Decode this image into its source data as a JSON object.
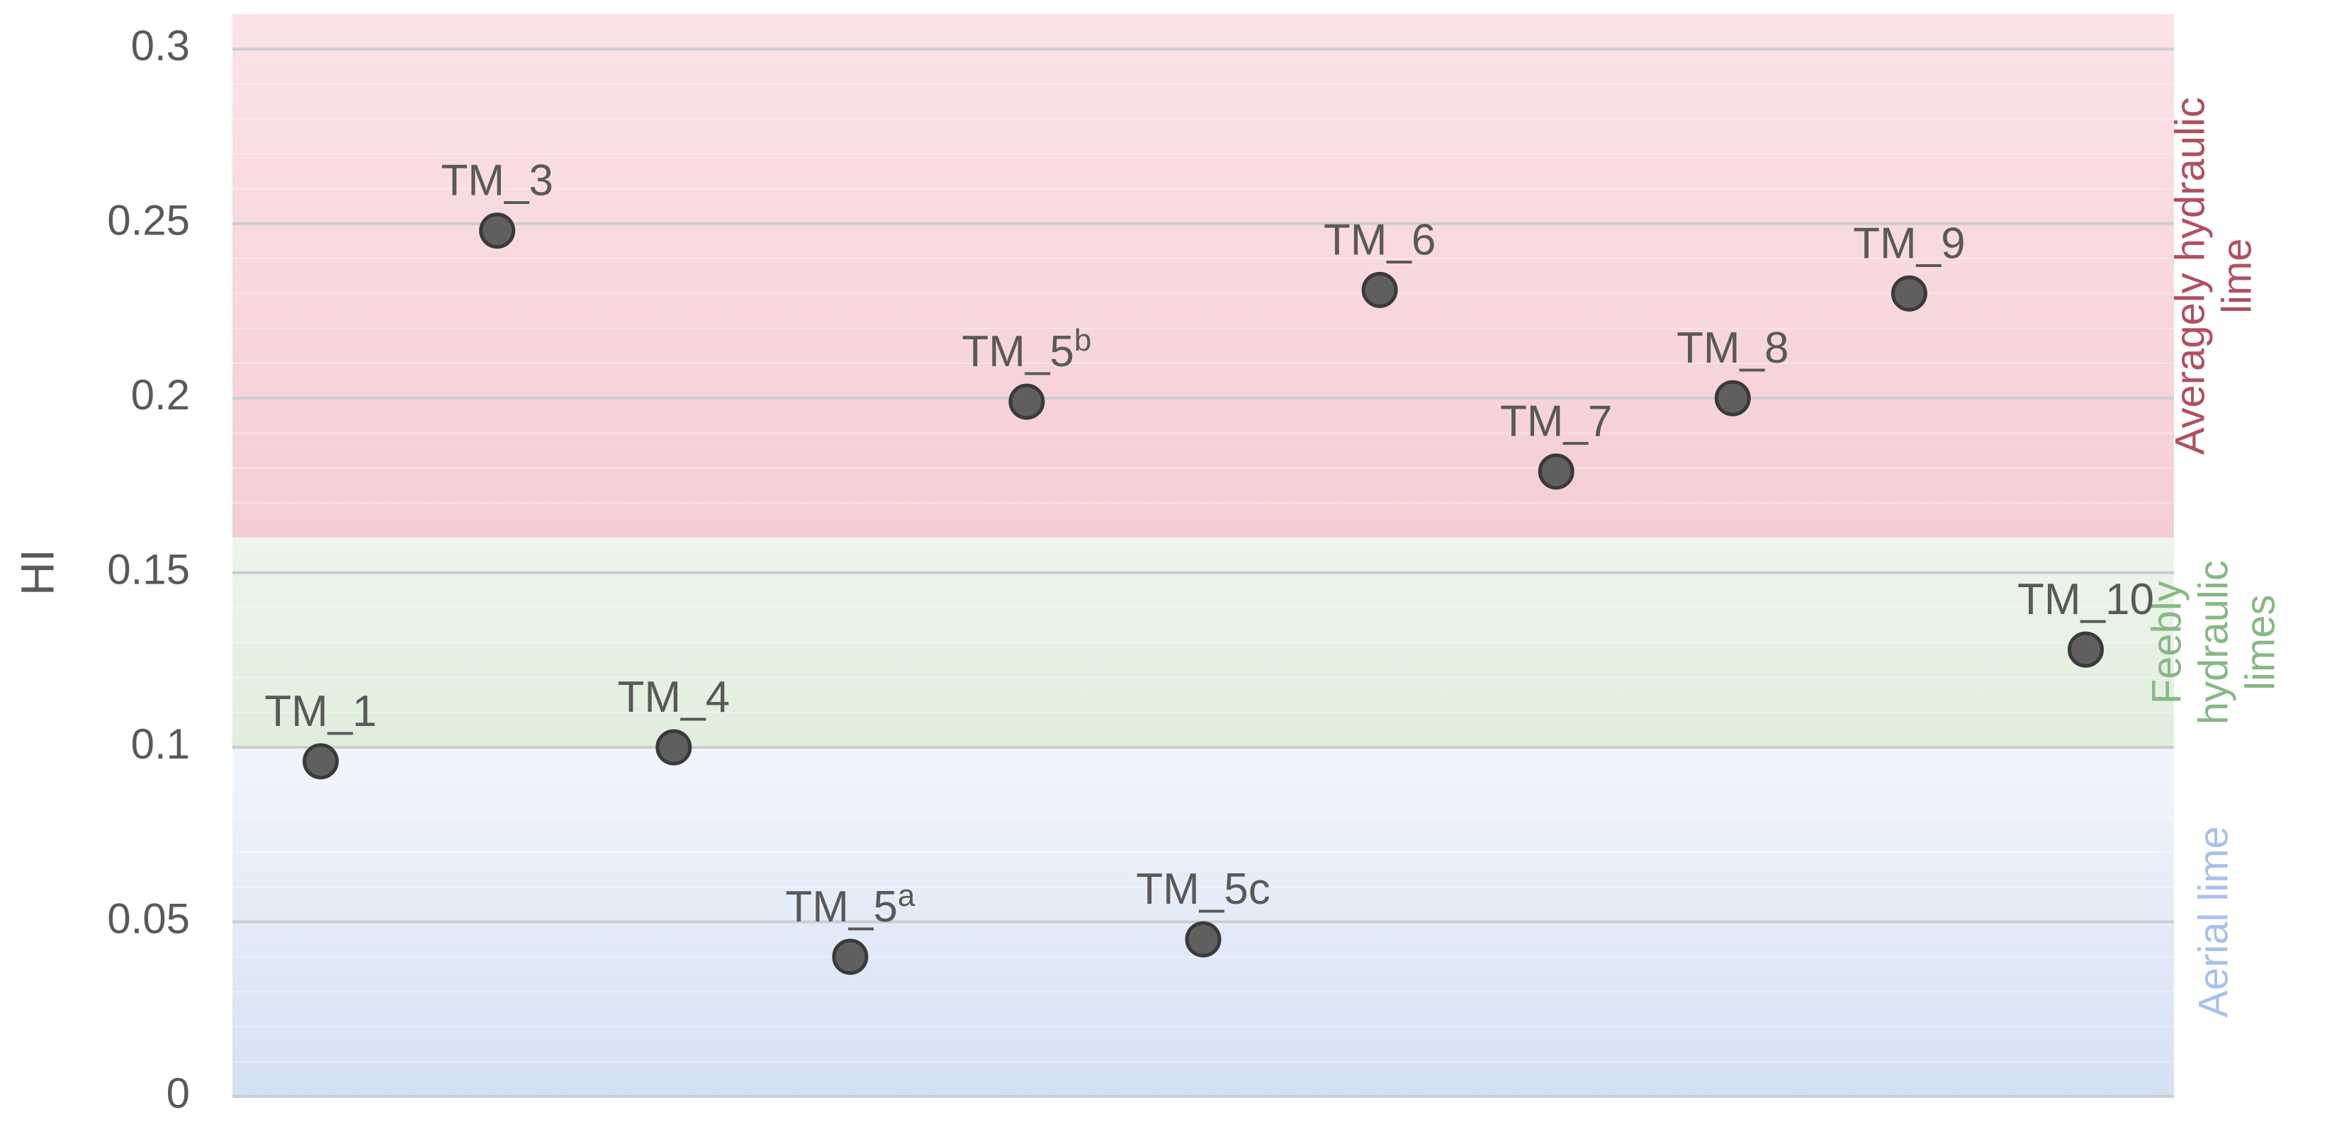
{
  "chart_data": {
    "type": "scatter",
    "title": "",
    "xlabel": "",
    "ylabel": "HI",
    "ylim": [
      0,
      0.31
    ],
    "yticks": [
      "0",
      "0.05",
      "0.1",
      "0.15",
      "0.2",
      "0.25",
      "0.3"
    ],
    "grid": true,
    "points": [
      {
        "label": "TM_1",
        "sup": "",
        "x": 1,
        "y": 0.096
      },
      {
        "label": "TM_3",
        "sup": "",
        "x": 2,
        "y": 0.248
      },
      {
        "label": "TM_4",
        "sup": "",
        "x": 3,
        "y": 0.1
      },
      {
        "label": "TM_5",
        "sup": "a",
        "x": 4,
        "y": 0.04
      },
      {
        "label": "TM_5",
        "sup": "b",
        "x": 5,
        "y": 0.199
      },
      {
        "label": "TM_5c",
        "sup": "",
        "x": 6,
        "y": 0.045
      },
      {
        "label": "TM_6",
        "sup": "",
        "x": 7,
        "y": 0.231
      },
      {
        "label": "TM_7",
        "sup": "",
        "x": 8,
        "y": 0.179
      },
      {
        "label": "TM_8",
        "sup": "",
        "x": 9,
        "y": 0.2
      },
      {
        "label": "TM_9",
        "sup": "",
        "x": 10,
        "y": 0.23
      },
      {
        "label": "TM_10",
        "sup": "",
        "x": 11,
        "y": 0.128
      }
    ],
    "bands": [
      {
        "name": "Aerial lime",
        "lines": [
          "Aerial lime"
        ],
        "from": 0,
        "to": 0.1,
        "color_top": "#f2f5fd",
        "color_bottom": "#d4e1f3",
        "text_color": "#a9c1e8"
      },
      {
        "name": "Feebly hydraulic limes",
        "lines": [
          "Feebly",
          "hydraulic",
          "limes"
        ],
        "from": 0.1,
        "to": 0.16,
        "color_top": "#eef5ec",
        "color_bottom": "#e0eedc",
        "text_color": "#88b885"
      },
      {
        "name": "Averagely hydraulic lime",
        "lines": [
          "Averagely hydraulic",
          "lime"
        ],
        "from": 0.16,
        "to": 0.31,
        "color_top": "#fbe3e7",
        "color_bottom": "#f4ced4",
        "text_color": "#b0505e"
      }
    ],
    "colors": {
      "marker_fill": "#5f5f5f",
      "marker_stroke": "#3a3a3a",
      "text": "#595959",
      "grid": "#c8ced4"
    }
  }
}
